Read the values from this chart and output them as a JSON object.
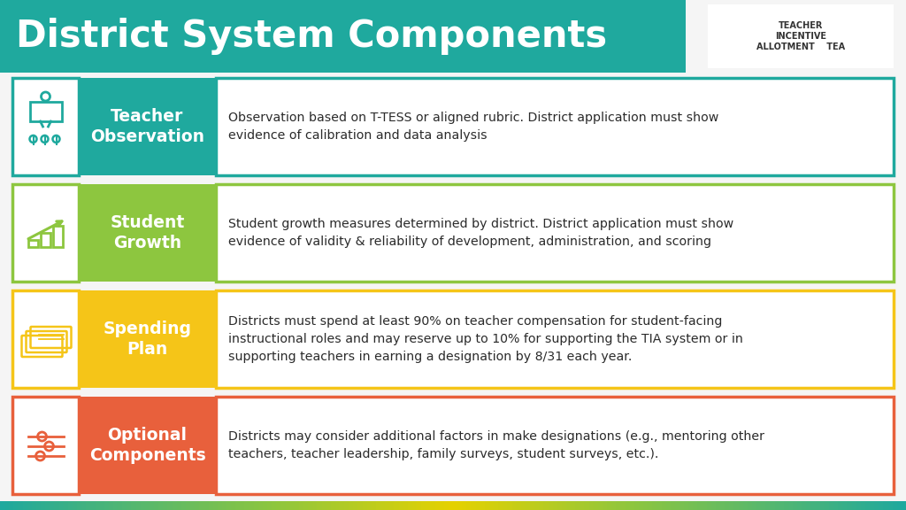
{
  "title": "District System Components",
  "title_color": "#FFFFFF",
  "title_bg_color": "#1FA99E",
  "bg_color": "#F5F5F5",
  "rows": [
    {
      "label": "Teacher\nObservation",
      "label_color": "#FFFFFF",
      "bg_color": "#1FA99E",
      "border_color": "#1FA99E",
      "text": "Observation based on T-TESS or aligned rubric. District application must show\nevidence of calibration and data analysis",
      "icon": "teacher"
    },
    {
      "label": "Student\nGrowth",
      "label_color": "#FFFFFF",
      "bg_color": "#8DC63F",
      "border_color": "#8DC63F",
      "text": "Student growth measures determined by district. District application must show\nevidence of validity & reliability of development, administration, and scoring",
      "icon": "growth"
    },
    {
      "label": "Spending\nPlan",
      "label_color": "#FFFFFF",
      "bg_color": "#F5C518",
      "border_color": "#F5C518",
      "text": "Districts must spend at least 90% on teacher compensation for student-facing\ninstructional roles and may reserve up to 10% for supporting the TIA system or in\nsupporting teachers in earning a designation by 8/31 each year.",
      "icon": "spending"
    },
    {
      "label": "Optional\nComponents",
      "label_color": "#FFFFFF",
      "bg_color": "#E8603C",
      "border_color": "#E8603C",
      "text": "Districts may consider additional factors in make designations (e.g., mentoring other\nteachers, teacher leadership, family surveys, student surveys, etc.).",
      "icon": "optional"
    }
  ]
}
